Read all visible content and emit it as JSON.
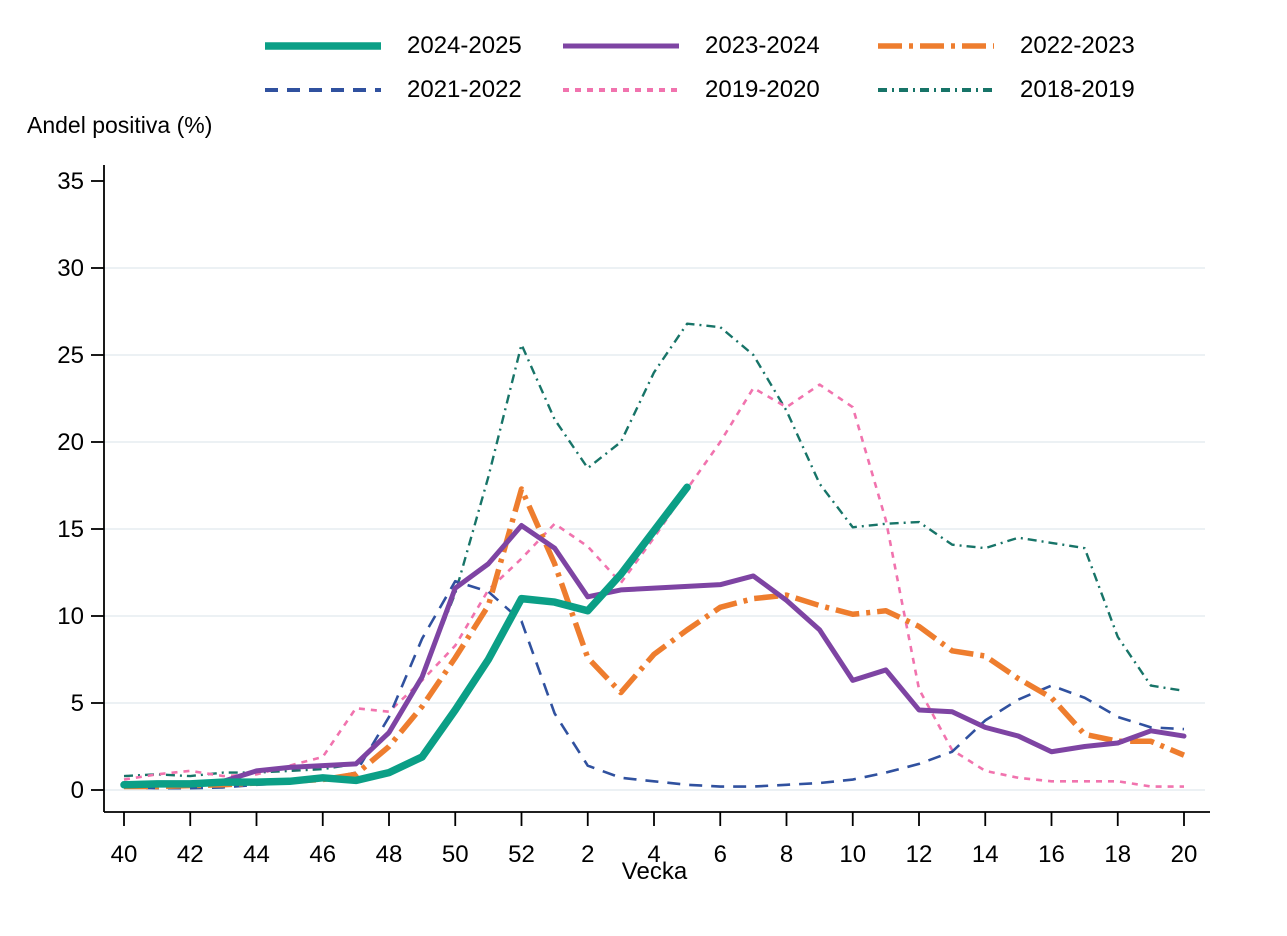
{
  "chart_data": {
    "type": "line",
    "title": "Andel positiva (%)",
    "xlabel": "Vecka",
    "ylabel": "Andel positiva (%)",
    "ylim": [
      0,
      35
    ],
    "grid": true,
    "grid_values": [
      0,
      5,
      10,
      15,
      20,
      25,
      30
    ],
    "y_ticks": [
      0,
      5,
      10,
      15,
      20,
      25,
      30,
      35
    ],
    "x_categories": [
      "40",
      "41",
      "42",
      "43",
      "44",
      "45",
      "46",
      "47",
      "48",
      "49",
      "50",
      "51",
      "52",
      "1",
      "2",
      "3",
      "4",
      "5",
      "6",
      "7",
      "8",
      "9",
      "10",
      "11",
      "12",
      "13",
      "14",
      "15",
      "16",
      "17",
      "18",
      "19",
      "20"
    ],
    "x_tick_labels": [
      "40",
      "42",
      "44",
      "46",
      "48",
      "50",
      "52",
      "2",
      "4",
      "6",
      "8",
      "10",
      "12",
      "14",
      "16",
      "18",
      "20"
    ],
    "x_tick_indices": [
      0,
      2,
      4,
      6,
      8,
      10,
      12,
      14,
      16,
      18,
      20,
      22,
      24,
      26,
      28,
      30,
      32
    ],
    "legend_position": "top",
    "legend_rows": [
      [
        0,
        1,
        2
      ],
      [
        3,
        4,
        5
      ]
    ],
    "series": [
      {
        "name": "2024-2025",
        "color": "#0b9f86",
        "dash": [],
        "width": 7.5,
        "values": [
          0.3,
          0.35,
          0.35,
          0.45,
          0.45,
          0.5,
          0.7,
          0.55,
          1.0,
          1.9,
          4.6,
          7.5,
          11.0,
          10.8,
          10.3,
          12.4,
          14.9,
          17.4
        ]
      },
      {
        "name": "2023-2024",
        "color": "#7e44a3",
        "dash": [],
        "width": 5,
        "values": [
          0.3,
          0.3,
          0.35,
          0.5,
          1.1,
          1.3,
          1.4,
          1.5,
          3.3,
          6.5,
          11.6,
          13.0,
          15.2,
          13.9,
          11.1,
          11.5,
          11.6,
          11.7,
          11.8,
          12.3,
          10.9,
          9.2,
          6.3,
          6.9,
          4.6,
          4.5,
          3.6,
          3.1,
          2.2,
          2.5,
          2.7,
          3.4,
          3.1
        ]
      },
      {
        "name": "2022-2023",
        "color": "#ee7d2e",
        "dash": [
          24,
          7,
          4,
          7
        ],
        "width": 5.5,
        "values": [
          0.2,
          0.2,
          0.25,
          0.3,
          0.4,
          0.5,
          0.6,
          0.9,
          2.5,
          4.8,
          7.6,
          10.6,
          17.3,
          13.0,
          7.6,
          5.6,
          7.8,
          9.2,
          10.5,
          11.0,
          11.2,
          10.6,
          10.1,
          10.3,
          9.4,
          8.0,
          7.7,
          6.4,
          5.3,
          3.2,
          2.8,
          2.8,
          2.0
        ]
      },
      {
        "name": "2021-2022",
        "color": "#30519f",
        "dash": [
          13,
          9
        ],
        "width": 2.6,
        "values": [
          0.15,
          0.1,
          0.1,
          0.15,
          0.3,
          0.4,
          0.6,
          1.0,
          4.2,
          8.7,
          12.0,
          11.4,
          9.7,
          4.4,
          1.4,
          0.7,
          0.5,
          0.3,
          0.2,
          0.2,
          0.3,
          0.4,
          0.6,
          1.0,
          1.5,
          2.2,
          4.0,
          5.2,
          6.0,
          5.3,
          4.2,
          3.6,
          3.5
        ]
      },
      {
        "name": "2019-2020",
        "color": "#f173ae",
        "dash": [
          6,
          6
        ],
        "width": 2.6,
        "values": [
          0.6,
          0.9,
          1.1,
          0.8,
          0.9,
          1.4,
          1.9,
          4.7,
          4.5,
          6.3,
          8.3,
          11.5,
          13.3,
          15.3,
          14.0,
          11.9,
          14.5,
          17.3,
          20.0,
          23.1,
          22.0,
          23.3,
          22.0,
          15.5,
          5.8,
          2.3,
          1.1,
          0.7,
          0.5,
          0.5,
          0.5,
          0.2,
          0.2
        ]
      },
      {
        "name": "2018-2019",
        "color": "#177468",
        "dash": [
          9,
          5,
          2,
          5
        ],
        "width": 2.4,
        "values": [
          0.8,
          0.9,
          0.8,
          1.0,
          1.0,
          1.1,
          1.2,
          1.5,
          3.2,
          6.5,
          11.3,
          18.0,
          25.6,
          21.3,
          18.5,
          20.0,
          24.0,
          26.8,
          26.6,
          25.0,
          21.8,
          17.6,
          15.1,
          15.3,
          15.4,
          14.1,
          13.9,
          14.5,
          14.2,
          13.9,
          8.8,
          6.0,
          5.7
        ]
      }
    ],
    "style": {
      "grid_color": "#e9eff2",
      "axis_color": "#000000",
      "background": "#ffffff"
    }
  }
}
